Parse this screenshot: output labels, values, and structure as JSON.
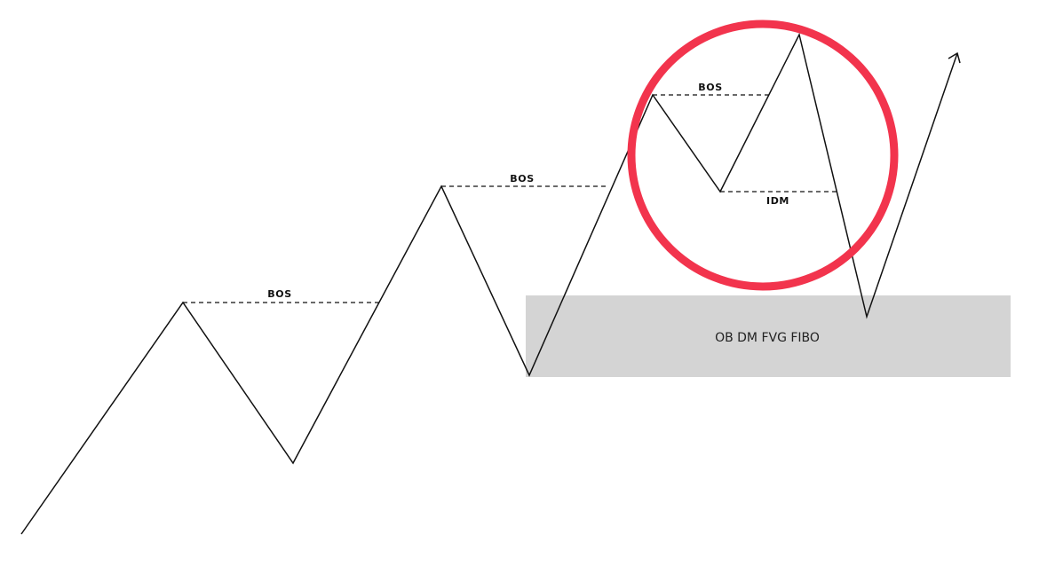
{
  "colors": {
    "background": "#ffffff",
    "line": "#111111",
    "zone_fill": "#d4d4d4",
    "highlight_circle": "#f2344d"
  },
  "labels": {
    "bos_1": "BOS",
    "bos_2": "BOS",
    "bos_3": "BOS",
    "idm": "IDM",
    "zone": "OB DM FVG FIBO"
  },
  "icons": {
    "arrow_head": "arrow-head-icon"
  }
}
